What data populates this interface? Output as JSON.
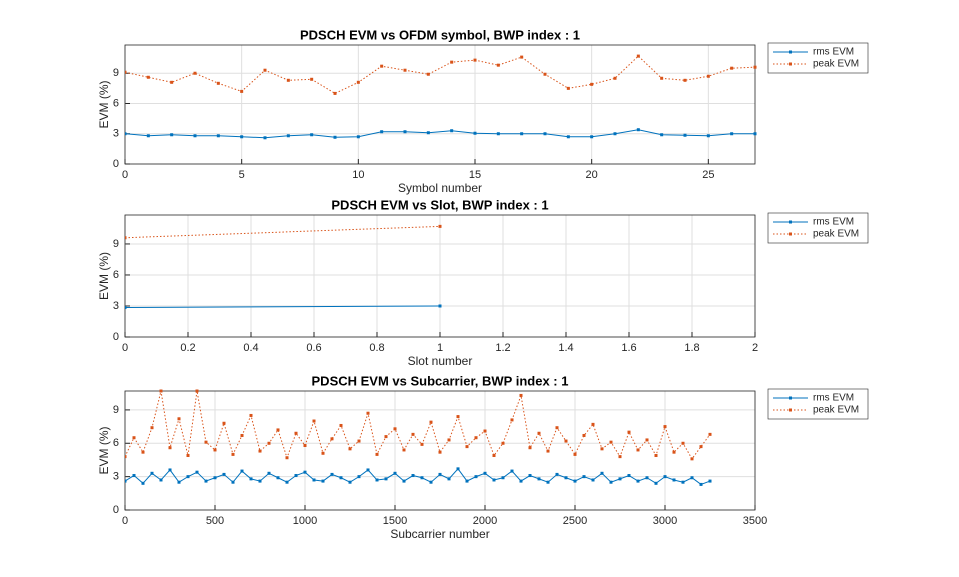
{
  "chart_data": [
    {
      "type": "line",
      "title": "PDSCH EVM vs OFDM symbol, BWP index : 1",
      "xlabel": "Symbol number",
      "ylabel": "EVM (%)",
      "x": [
        0,
        1,
        2,
        3,
        4,
        5,
        6,
        7,
        8,
        9,
        10,
        11,
        12,
        13,
        14,
        15,
        16,
        17,
        18,
        19,
        20,
        21,
        22,
        23,
        24,
        25,
        26,
        27
      ],
      "series": [
        {
          "name": "rms EVM",
          "color": "#0072BD",
          "values": [
            3.0,
            2.8,
            2.9,
            2.8,
            2.8,
            2.7,
            2.6,
            2.8,
            2.9,
            2.65,
            2.7,
            3.2,
            3.2,
            3.1,
            3.3,
            3.05,
            3.0,
            3.0,
            3.0,
            2.7,
            2.7,
            3.0,
            3.4,
            2.9,
            2.85,
            2.8,
            3.0,
            3.0
          ]
        },
        {
          "name": "peak EVM",
          "color": "#D95319",
          "values": [
            9.1,
            8.6,
            8.1,
            9.0,
            8.0,
            7.2,
            9.3,
            8.3,
            8.4,
            7.0,
            8.1,
            9.7,
            9.3,
            8.9,
            10.1,
            10.3,
            9.8,
            10.6,
            8.9,
            7.5,
            7.9,
            8.5,
            10.7,
            8.5,
            8.3,
            8.7,
            9.5,
            9.6
          ]
        }
      ],
      "xlim": [
        0,
        27
      ],
      "ylim": [
        0,
        11.8
      ],
      "xticks": [
        0,
        5,
        10,
        15,
        20,
        25
      ],
      "yticks": [
        0,
        3,
        6,
        9
      ],
      "grid": true,
      "legend": "northeastoutside"
    },
    {
      "type": "line",
      "title": "PDSCH EVM vs Slot, BWP index : 1",
      "xlabel": "Slot number",
      "ylabel": "EVM (%)",
      "x": [
        0,
        1
      ],
      "series": [
        {
          "name": "rms EVM",
          "color": "#0072BD",
          "values": [
            2.85,
            3.0
          ]
        },
        {
          "name": "peak EVM",
          "color": "#D95319",
          "values": [
            9.6,
            10.7
          ]
        }
      ],
      "xlim": [
        0,
        2
      ],
      "ylim": [
        0,
        11.8
      ],
      "xticks": [
        0,
        0.2,
        0.4,
        0.6,
        0.8,
        1,
        1.2,
        1.4,
        1.6,
        1.8,
        2
      ],
      "yticks": [
        0,
        3,
        6,
        9
      ],
      "grid": true,
      "legend": "northeastoutside"
    },
    {
      "type": "line",
      "title": "PDSCH EVM vs Subcarrier, BWP index : 1",
      "xlabel": "Subcarrier number",
      "ylabel": "EVM (%)",
      "x": [
        0,
        50,
        100,
        150,
        200,
        250,
        300,
        350,
        400,
        450,
        500,
        550,
        600,
        650,
        700,
        750,
        800,
        850,
        900,
        950,
        1000,
        1050,
        1100,
        1150,
        1200,
        1250,
        1300,
        1350,
        1400,
        1450,
        1500,
        1550,
        1600,
        1650,
        1700,
        1750,
        1800,
        1850,
        1900,
        1950,
        2000,
        2050,
        2100,
        2150,
        2200,
        2250,
        2300,
        2350,
        2400,
        2450,
        2500,
        2550,
        2600,
        2650,
        2700,
        2750,
        2800,
        2850,
        2900,
        2950,
        3000,
        3050,
        3100,
        3150,
        3200,
        3250
      ],
      "series": [
        {
          "name": "rms EVM",
          "color": "#0072BD",
          "values": [
            2.6,
            3.1,
            2.4,
            3.3,
            2.7,
            3.6,
            2.5,
            3.0,
            3.4,
            2.6,
            2.9,
            3.2,
            2.5,
            3.5,
            2.8,
            2.6,
            3.3,
            2.9,
            2.5,
            3.1,
            3.4,
            2.7,
            2.6,
            3.2,
            2.9,
            2.5,
            3.0,
            3.6,
            2.7,
            2.8,
            3.3,
            2.6,
            3.1,
            2.9,
            2.5,
            3.2,
            2.8,
            3.7,
            2.6,
            3.0,
            3.3,
            2.7,
            2.9,
            3.5,
            2.6,
            3.1,
            2.8,
            2.5,
            3.2,
            2.9,
            2.6,
            3.0,
            2.7,
            3.3,
            2.5,
            2.8,
            3.1,
            2.6,
            2.9,
            2.4,
            3.0,
            2.7,
            2.5,
            2.9,
            2.3,
            2.6
          ]
        },
        {
          "name": "peak EVM",
          "color": "#D95319",
          "values": [
            4.8,
            6.5,
            5.2,
            7.4,
            10.7,
            5.6,
            8.2,
            4.9,
            10.7,
            6.1,
            5.4,
            7.8,
            5.0,
            6.7,
            8.5,
            5.3,
            6.0,
            7.2,
            4.7,
            6.9,
            5.8,
            8.0,
            5.1,
            6.4,
            7.6,
            5.5,
            6.2,
            8.7,
            5.0,
            6.6,
            7.3,
            5.4,
            6.8,
            5.9,
            7.9,
            5.2,
            6.3,
            8.4,
            5.7,
            6.5,
            7.1,
            4.9,
            6.0,
            8.1,
            10.3,
            5.6,
            6.9,
            5.3,
            7.4,
            6.2,
            5.0,
            6.7,
            7.7,
            5.5,
            6.1,
            4.8,
            7.0,
            5.4,
            6.3,
            4.9,
            7.5,
            5.2,
            6.0,
            4.6,
            5.7,
            6.8
          ]
        }
      ],
      "xlim": [
        0,
        3500
      ],
      "ylim": [
        0,
        10.7
      ],
      "xticks": [
        0,
        500,
        1000,
        1500,
        2000,
        2500,
        3000,
        3500
      ],
      "yticks": [
        0,
        3,
        6,
        9
      ],
      "grid": true,
      "legend": "northeastoutside"
    }
  ]
}
